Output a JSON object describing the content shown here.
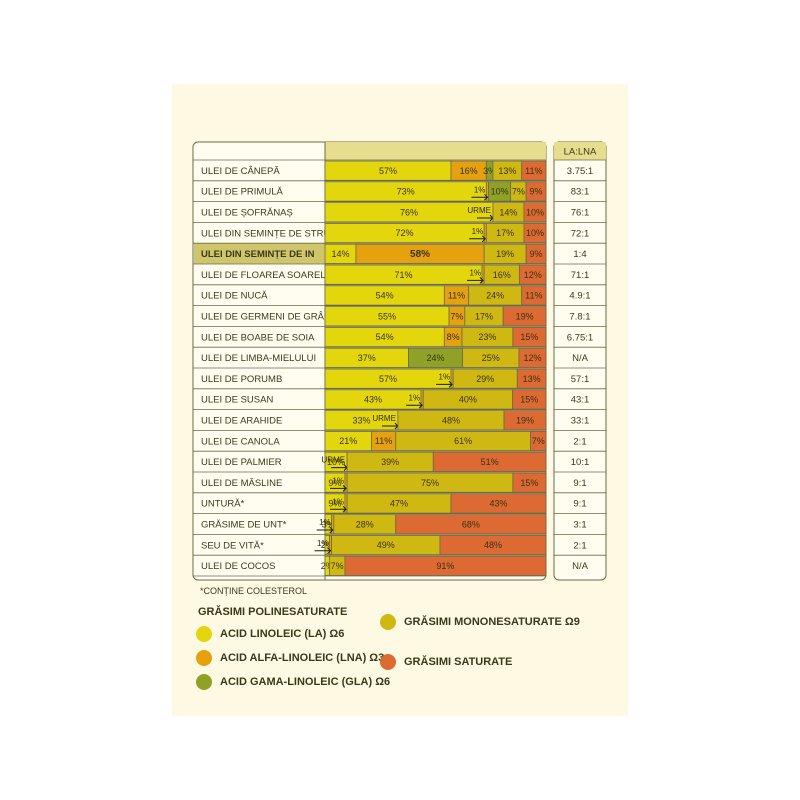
{
  "chart_data": {
    "type": "bar",
    "ratio_header": "LA:LNA",
    "footnote": "*CONȚINE COLESTEROL",
    "legend": {
      "group_title": "GRĂSIMI POLINESATURATE",
      "items": {
        "la": {
          "label": "ACID LINOLEIC (LA) Ω6",
          "color": "#e3d60c"
        },
        "lna": {
          "label": "ACID ALFA-LINOLEIC (LNA) Ω3",
          "color": "#e5a10e"
        },
        "gla": {
          "label": "ACID GAMA-LINOLEIC (GLA) Ω6",
          "color": "#8fa227"
        },
        "mono": {
          "label": "GRĂSIMI MONONESATURATE Ω9",
          "color": "#cfb812"
        },
        "sat": {
          "label": "GRĂSIMI SATURATE",
          "color": "#dc6a32"
        }
      }
    },
    "rows": [
      {
        "name": "ULEI DE CÂNEPĂ",
        "ratio": "3.75:1",
        "segments": [
          {
            "t": "la",
            "v": 57,
            "l": "57%"
          },
          {
            "t": "lna",
            "v": 16,
            "l": "16%"
          },
          {
            "t": "gla",
            "v": 3,
            "l": "3%"
          },
          {
            "t": "mono",
            "v": 13,
            "l": "13%"
          },
          {
            "t": "sat",
            "v": 11,
            "l": "11%"
          }
        ]
      },
      {
        "name": "ULEI DE PRIMULĂ",
        "ratio": "83:1",
        "segments": [
          {
            "t": "la",
            "v": 73,
            "l": "73%"
          },
          {
            "t": "lna",
            "v": 1,
            "l": "1%"
          },
          {
            "t": "gla",
            "v": 10,
            "l": "10%"
          },
          {
            "t": "mono",
            "v": 7,
            "l": "7%"
          },
          {
            "t": "sat",
            "v": 9,
            "l": "9%"
          }
        ]
      },
      {
        "name": "ULEI DE ȘOFRĂNAȘ",
        "ratio": "76:1",
        "segments": [
          {
            "t": "la",
            "v": 76,
            "l": "76%"
          },
          {
            "t": "lna",
            "v": 0,
            "l": "URME"
          },
          {
            "t": "mono",
            "v": 14,
            "l": "14%"
          },
          {
            "t": "sat",
            "v": 10,
            "l": "10%"
          }
        ]
      },
      {
        "name": "ULEI DIN SEMINȚE DE STRUGURI",
        "ratio": "72:1",
        "segments": [
          {
            "t": "la",
            "v": 72,
            "l": "72%"
          },
          {
            "t": "lna",
            "v": 1,
            "l": "1%"
          },
          {
            "t": "mono",
            "v": 17,
            "l": "17%"
          },
          {
            "t": "sat",
            "v": 10,
            "l": "10%"
          }
        ]
      },
      {
        "name": "ULEI DIN SEMINȚE DE IN",
        "ratio": "1:4",
        "highlight": true,
        "segments": [
          {
            "t": "la",
            "v": 14,
            "l": "14%"
          },
          {
            "t": "lna",
            "v": 58,
            "l": "58%"
          },
          {
            "t": "mono",
            "v": 19,
            "l": "19%"
          },
          {
            "t": "sat",
            "v": 9,
            "l": "9%"
          }
        ]
      },
      {
        "name": "ULEI DE FLOAREA SOARELUI",
        "ratio": "71:1",
        "segments": [
          {
            "t": "la",
            "v": 71,
            "l": "71%"
          },
          {
            "t": "lna",
            "v": 1,
            "l": "1%"
          },
          {
            "t": "mono",
            "v": 16,
            "l": "16%"
          },
          {
            "t": "sat",
            "v": 12,
            "l": "12%"
          }
        ]
      },
      {
        "name": "ULEI DE NUCĂ",
        "ratio": "4.9:1",
        "segments": [
          {
            "t": "la",
            "v": 54,
            "l": "54%"
          },
          {
            "t": "lna",
            "v": 11,
            "l": "11%"
          },
          {
            "t": "mono",
            "v": 24,
            "l": "24%"
          },
          {
            "t": "sat",
            "v": 11,
            "l": "11%"
          }
        ]
      },
      {
        "name": "ULEI DE GERMENI DE GRÂU",
        "ratio": "7.8:1",
        "segments": [
          {
            "t": "la",
            "v": 55,
            "l": "55%"
          },
          {
            "t": "lna",
            "v": 7,
            "l": "7%"
          },
          {
            "t": "mono",
            "v": 17,
            "l": "17%"
          },
          {
            "t": "sat",
            "v": 19,
            "l": "19%"
          }
        ]
      },
      {
        "name": "ULEI DE BOABE DE SOIA",
        "ratio": "6.75:1",
        "segments": [
          {
            "t": "la",
            "v": 54,
            "l": "54%"
          },
          {
            "t": "lna",
            "v": 8,
            "l": "8%"
          },
          {
            "t": "mono",
            "v": 23,
            "l": "23%"
          },
          {
            "t": "sat",
            "v": 15,
            "l": "15%"
          }
        ]
      },
      {
        "name": "ULEI DE LIMBA-MIELULUI",
        "ratio": "N/A",
        "segments": [
          {
            "t": "la",
            "v": 37,
            "l": "37%"
          },
          {
            "t": "gla",
            "v": 24,
            "l": "24%"
          },
          {
            "t": "mono",
            "v": 25,
            "l": "25%"
          },
          {
            "t": "sat",
            "v": 12,
            "l": "12%"
          }
        ]
      },
      {
        "name": "ULEI DE PORUMB",
        "ratio": "57:1",
        "segments": [
          {
            "t": "la",
            "v": 57,
            "l": "57%"
          },
          {
            "t": "lna",
            "v": 1,
            "l": "1%"
          },
          {
            "t": "mono",
            "v": 29,
            "l": "29%"
          },
          {
            "t": "sat",
            "v": 13,
            "l": "13%"
          }
        ]
      },
      {
        "name": "ULEI DE SUSAN",
        "ratio": "43:1",
        "segments": [
          {
            "t": "la",
            "v": 43,
            "l": "43%"
          },
          {
            "t": "lna",
            "v": 1,
            "l": "1%"
          },
          {
            "t": "mono",
            "v": 40,
            "l": "40%"
          },
          {
            "t": "sat",
            "v": 15,
            "l": "15%"
          }
        ]
      },
      {
        "name": "ULEI DE ARAHIDE",
        "ratio": "33:1",
        "segments": [
          {
            "t": "la",
            "v": 33,
            "l": "33%"
          },
          {
            "t": "lna",
            "v": 0,
            "l": "URME"
          },
          {
            "t": "mono",
            "v": 48,
            "l": "48%"
          },
          {
            "t": "sat",
            "v": 19,
            "l": "19%"
          }
        ]
      },
      {
        "name": "ULEI DE CANOLA",
        "ratio": "2:1",
        "segments": [
          {
            "t": "la",
            "v": 21,
            "l": "21%"
          },
          {
            "t": "lna",
            "v": 11,
            "l": "11%"
          },
          {
            "t": "mono",
            "v": 61,
            "l": "61%"
          },
          {
            "t": "sat",
            "v": 7,
            "l": "7%"
          }
        ]
      },
      {
        "name": "ULEI DE PALMIER",
        "ratio": "10:1",
        "segments": [
          {
            "t": "la",
            "v": 10,
            "l": "10%"
          },
          {
            "t": "lna",
            "v": 0,
            "l": "URME"
          },
          {
            "t": "mono",
            "v": 39,
            "l": "39%"
          },
          {
            "t": "sat",
            "v": 51,
            "l": "51%"
          }
        ]
      },
      {
        "name": "ULEI DE MĂSLINE",
        "ratio": "9:1",
        "segments": [
          {
            "t": "la",
            "v": 9,
            "l": "9%"
          },
          {
            "t": "lna",
            "v": 1,
            "l": "1%"
          },
          {
            "t": "mono",
            "v": 75,
            "l": "75%"
          },
          {
            "t": "sat",
            "v": 15,
            "l": "15%"
          }
        ]
      },
      {
        "name": "UNTURĂ*",
        "ratio": "9:1",
        "segments": [
          {
            "t": "la",
            "v": 9,
            "l": "9%"
          },
          {
            "t": "lna",
            "v": 1,
            "l": "1%"
          },
          {
            "t": "mono",
            "v": 47,
            "l": "47%"
          },
          {
            "t": "sat",
            "v": 43,
            "l": "43%"
          }
        ]
      },
      {
        "name": "GRĂSIME DE UNT*",
        "ratio": "3:1",
        "segments": [
          {
            "t": "la",
            "v": 3,
            "l": "3%"
          },
          {
            "t": "lna",
            "v": 1,
            "l": "1%"
          },
          {
            "t": "mono",
            "v": 28,
            "l": "28%"
          },
          {
            "t": "sat",
            "v": 68,
            "l": "68%"
          }
        ]
      },
      {
        "name": "SEU DE VITĂ*",
        "ratio": "2:1",
        "segments": [
          {
            "t": "la",
            "v": 2,
            "l": "2%"
          },
          {
            "t": "lna",
            "v": 1,
            "l": "1%"
          },
          {
            "t": "mono",
            "v": 49,
            "l": "49%"
          },
          {
            "t": "sat",
            "v": 48,
            "l": "48%"
          }
        ]
      },
      {
        "name": "ULEI DE COCOS",
        "ratio": "N/A",
        "segments": [
          {
            "t": "la",
            "v": 2,
            "l": "2%"
          },
          {
            "t": "mono",
            "v": 7,
            "l": "7%"
          },
          {
            "t": "sat",
            "v": 91,
            "l": "91%"
          }
        ]
      }
    ]
  }
}
